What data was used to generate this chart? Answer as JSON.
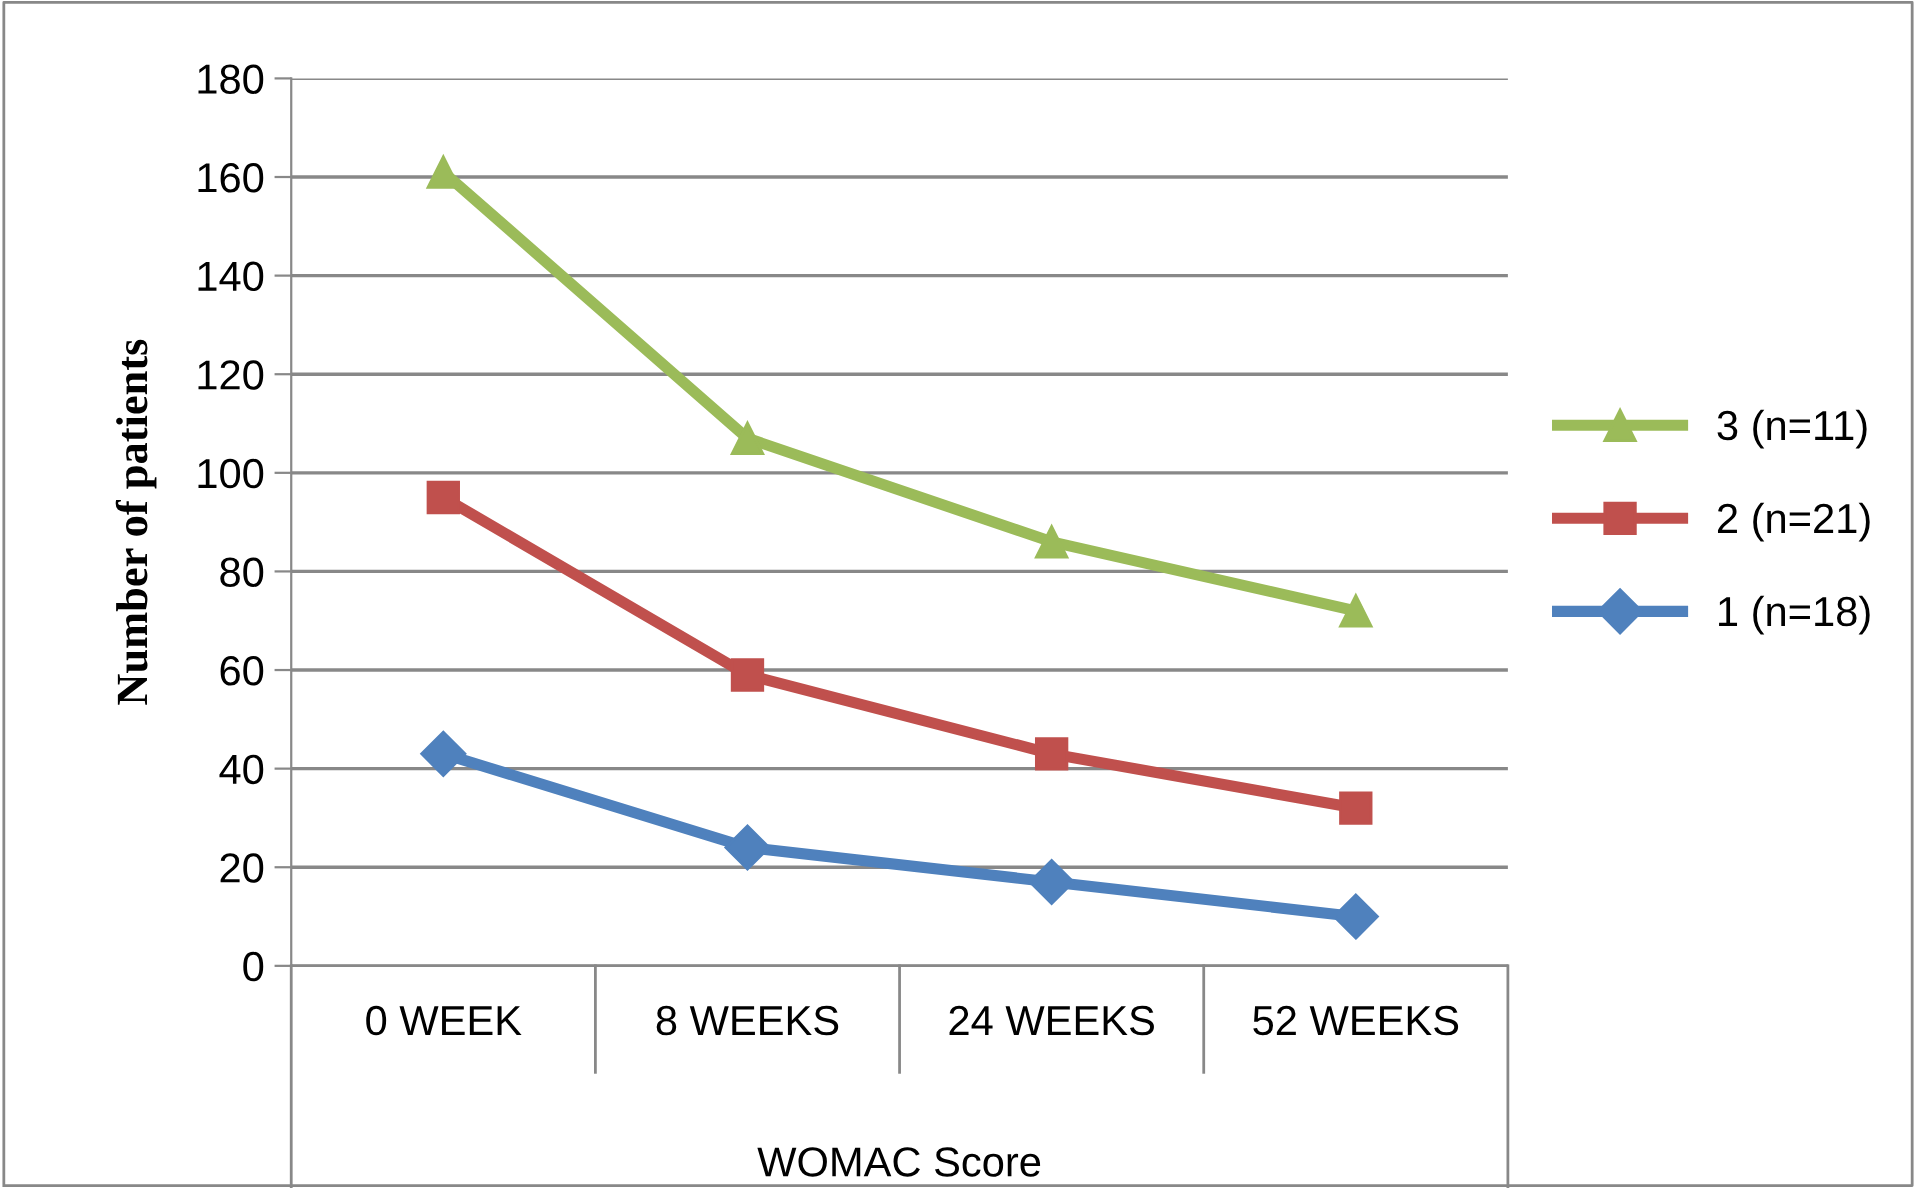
{
  "chart_data": {
    "type": "line",
    "xlabel": "WOMAC Score",
    "ylabel": "Number of patients",
    "categories": [
      "0 WEEK",
      "8 WEEKS",
      "24 WEEKS",
      "52 WEEKS"
    ],
    "ylim": [
      0,
      180
    ],
    "yticks": [
      0,
      20,
      40,
      60,
      80,
      100,
      120,
      140,
      160,
      180
    ],
    "grid": "y",
    "legend": "right",
    "series": [
      {
        "name": "3 (n=11)",
        "color": "#9bbb59",
        "marker": "triangle",
        "values": [
          161,
          107,
          86,
          72
        ]
      },
      {
        "name": "2 (n=21)",
        "color": "#c0504d",
        "marker": "square",
        "values": [
          95,
          59,
          43,
          32
        ]
      },
      {
        "name": "1 (n=18)",
        "color": "#4f81bd",
        "marker": "diamond",
        "values": [
          43,
          24,
          17,
          10
        ]
      }
    ]
  }
}
